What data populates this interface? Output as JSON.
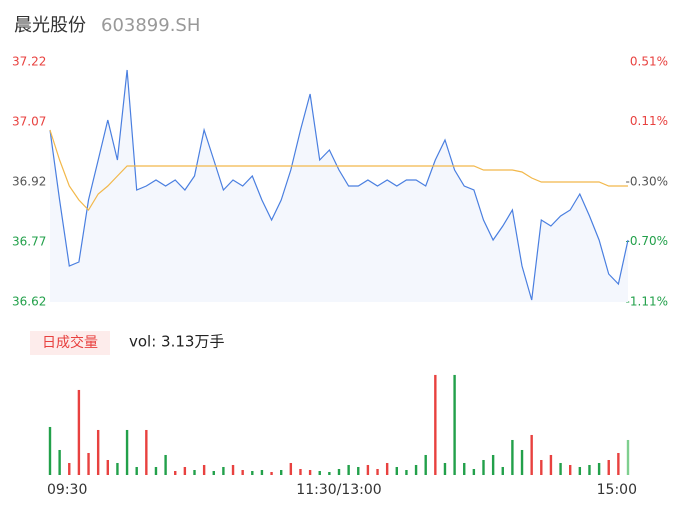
{
  "chart_data": {
    "type": "line",
    "title": "晨光股份",
    "subtitle": "603899.SH",
    "x": [
      0,
      4,
      8,
      12,
      16,
      20,
      24,
      28,
      32,
      36,
      40,
      44,
      48,
      52,
      56,
      60,
      64,
      68,
      72,
      76,
      80,
      84,
      88,
      92,
      96,
      100,
      104,
      108,
      112,
      116,
      120,
      124,
      128,
      132,
      136,
      140,
      144,
      148,
      152,
      156,
      160,
      164,
      168,
      172,
      176,
      180,
      184,
      188,
      192,
      196,
      200,
      204,
      208,
      212,
      216,
      220,
      224,
      228,
      232,
      236,
      240
    ],
    "xlim": [
      0,
      240
    ],
    "xticks": [
      {
        "value": 0,
        "label": "09:30"
      },
      {
        "value": 120,
        "label": "11:30/13:00"
      },
      {
        "value": 240,
        "label": "15:00"
      }
    ],
    "ylim": [
      36.62,
      37.22
    ],
    "yticks": [
      {
        "value": 36.62,
        "label": "36.62"
      },
      {
        "value": 36.77,
        "label": "36.77"
      },
      {
        "value": 36.92,
        "label": "36.92"
      },
      {
        "value": 37.07,
        "label": "37.07"
      },
      {
        "value": 37.22,
        "label": "37.22"
      }
    ],
    "ytick_colors": [
      "#22a04a",
      "#22a04a",
      "#555555",
      "#e8413f",
      "#e8413f"
    ],
    "y2lim": [
      -1.11,
      0.51
    ],
    "y2ticks": [
      {
        "value": -1.11,
        "label": "-1.11%"
      },
      {
        "value": -0.7,
        "label": "-0.70%"
      },
      {
        "value": -0.3,
        "label": "-0.30%"
      },
      {
        "value": 0.11,
        "label": "0.11%"
      },
      {
        "value": 0.51,
        "label": "0.51%"
      }
    ],
    "series": [
      {
        "name": "price",
        "color": "#4a7fe0",
        "values": [
          37.05,
          36.875,
          36.71,
          36.72,
          36.875,
          36.975,
          37.075,
          36.975,
          37.2,
          36.9,
          36.91,
          36.925,
          36.91,
          36.925,
          36.9,
          36.935,
          37.05,
          36.975,
          36.9,
          36.925,
          36.91,
          36.935,
          36.875,
          36.825,
          36.875,
          36.95,
          37.05,
          37.14,
          36.975,
          37.0,
          36.95,
          36.91,
          36.91,
          36.925,
          36.91,
          36.925,
          36.91,
          36.925,
          36.925,
          36.91,
          36.975,
          37.025,
          36.95,
          36.91,
          36.9,
          36.825,
          36.775,
          36.81,
          36.85,
          36.71,
          36.625,
          36.825,
          36.81,
          36.835,
          36.85,
          36.89,
          36.835,
          36.775,
          36.69,
          36.665,
          36.775
        ]
      },
      {
        "name": "average",
        "color": "#f2b84b",
        "values": [
          37.05,
          36.975,
          36.91,
          36.875,
          36.85,
          36.89,
          36.91,
          36.935,
          36.96,
          36.96,
          36.96,
          36.96,
          36.96,
          36.96,
          36.96,
          36.96,
          36.96,
          36.96,
          36.96,
          36.96,
          36.96,
          36.96,
          36.96,
          36.96,
          36.96,
          36.96,
          36.96,
          36.96,
          36.96,
          36.96,
          36.96,
          36.96,
          36.96,
          36.96,
          36.96,
          36.96,
          36.96,
          36.96,
          36.96,
          36.96,
          36.96,
          36.96,
          36.96,
          36.96,
          36.96,
          36.95,
          36.95,
          36.95,
          36.95,
          36.945,
          36.93,
          36.92,
          36.92,
          36.92,
          36.92,
          36.92,
          36.92,
          36.92,
          36.91,
          36.91,
          36.91
        ]
      }
    ],
    "volume": {
      "label": "日成交量",
      "summary": "vol: 3.13万手",
      "ylim": [
        0,
        1750
      ],
      "values": [
        816,
        425,
        204,
        1445,
        374,
        765,
        255,
        204,
        765,
        136,
        765,
        136,
        340,
        68,
        136,
        85,
        170,
        68,
        136,
        170,
        85,
        68,
        85,
        51,
        85,
        204,
        102,
        85,
        68,
        51,
        102,
        170,
        136,
        170,
        102,
        204,
        136,
        85,
        170,
        340,
        1700,
        204,
        1700,
        204,
        102,
        255,
        340,
        136,
        595,
        425,
        680,
        255,
        340,
        204,
        170,
        136,
        170,
        204,
        255,
        374,
        595
      ],
      "colors": [
        "#22a04a",
        "#22a04a",
        "#e8413f",
        "#e8413f",
        "#e8413f",
        "#e8413f",
        "#e8413f",
        "#22a04a",
        "#22a04a",
        "#22a04a",
        "#e8413f",
        "#22a04a",
        "#22a04a",
        "#e8413f",
        "#e8413f",
        "#22a04a",
        "#e8413f",
        "#22a04a",
        "#22a04a",
        "#e8413f",
        "#e8413f",
        "#22a04a",
        "#22a04a",
        "#e8413f",
        "#22a04a",
        "#e8413f",
        "#e8413f",
        "#e8413f",
        "#22a04a",
        "#22a04a",
        "#22a04a",
        "#22a04a",
        "#22a04a",
        "#e8413f",
        "#e8413f",
        "#e8413f",
        "#22a04a",
        "#22a04a",
        "#22a04a",
        "#22a04a",
        "#e8413f",
        "#22a04a",
        "#22a04a",
        "#22a04a",
        "#22a04a",
        "#22a04a",
        "#22a04a",
        "#22a04a",
        "#22a04a",
        "#22a04a",
        "#e8413f",
        "#e8413f",
        "#e8413f",
        "#22a04a",
        "#e8413f",
        "#22a04a",
        "#22a04a",
        "#22a04a",
        "#e8413f",
        "#e8413f",
        "#7fcf8f"
      ]
    }
  }
}
